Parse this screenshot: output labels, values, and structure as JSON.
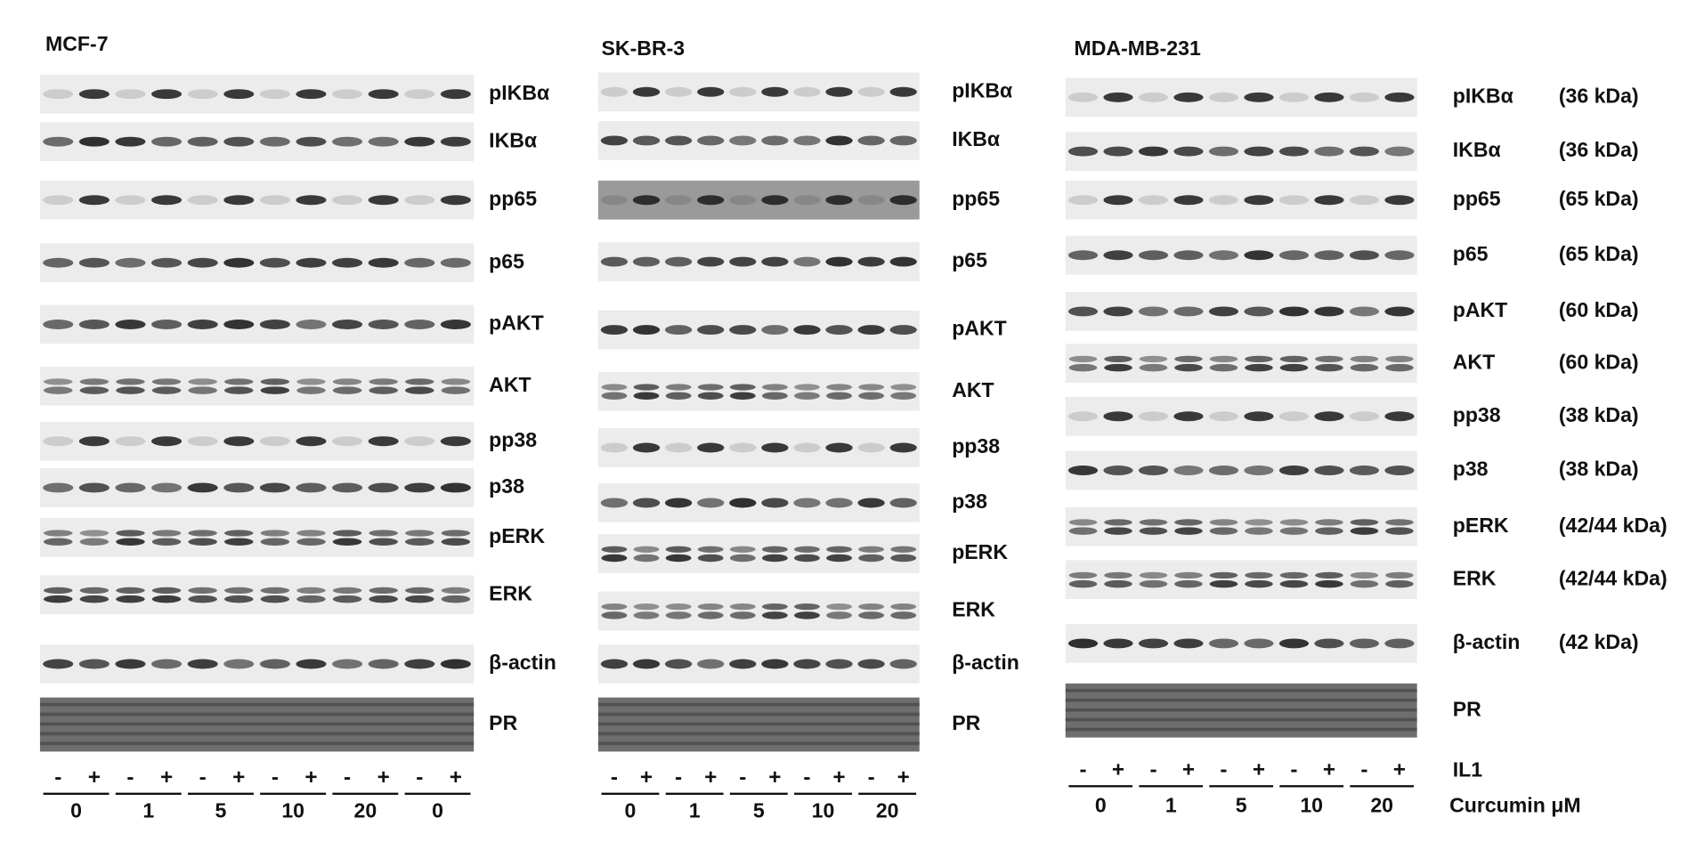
{
  "panels": [
    {
      "title": "MCF-7",
      "rows": [
        "pIKBα",
        "IKBα",
        "pp65",
        "p65",
        "pAKT",
        "AKT",
        "pp38",
        "p38",
        "pERK",
        "ERK",
        "β-actin",
        "PR"
      ],
      "lanes": [
        "-",
        "+",
        "-",
        "+",
        "-",
        "+",
        "-",
        "+",
        "-",
        "+",
        "-",
        "+"
      ],
      "doses": [
        "0",
        "1",
        "5",
        "10",
        "20",
        "0"
      ]
    },
    {
      "title": "SK-BR-3",
      "rows": [
        "pIKBα",
        "IKBα",
        "pp65",
        "p65",
        "pAKT",
        "AKT",
        "pp38",
        "p38",
        "pERK",
        "ERK",
        "β-actin",
        "PR"
      ],
      "lanes": [
        "-",
        "+",
        "-",
        "+",
        "-",
        "+",
        "-",
        "+",
        "-",
        "+"
      ],
      "doses": [
        "0",
        "1",
        "5",
        "10",
        "20"
      ]
    },
    {
      "title": "MDA-MB-231",
      "rows": [
        "pIKBα",
        "IKBα",
        "pp65",
        "p65",
        "pAKT",
        "AKT",
        "pp38",
        "p38",
        "pERK",
        "ERK",
        "β-actin",
        "PR"
      ],
      "kda": [
        "(36 kDa)",
        "(36 kDa)",
        "(65 kDa)",
        "(65 kDa)",
        "(60 kDa)",
        "(60 kDa)",
        "(38 kDa)",
        "(38 kDa)",
        "(42/44 kDa)",
        "(42/44 kDa)",
        "(42 kDa)"
      ],
      "lanes": [
        "-",
        "+",
        "-",
        "+",
        "-",
        "+",
        "-",
        "+",
        "-",
        "+"
      ],
      "doses": [
        "0",
        "1",
        "5",
        "10",
        "20"
      ]
    }
  ],
  "treatment": [
    "IL1",
    "Curcumin μM"
  ]
}
